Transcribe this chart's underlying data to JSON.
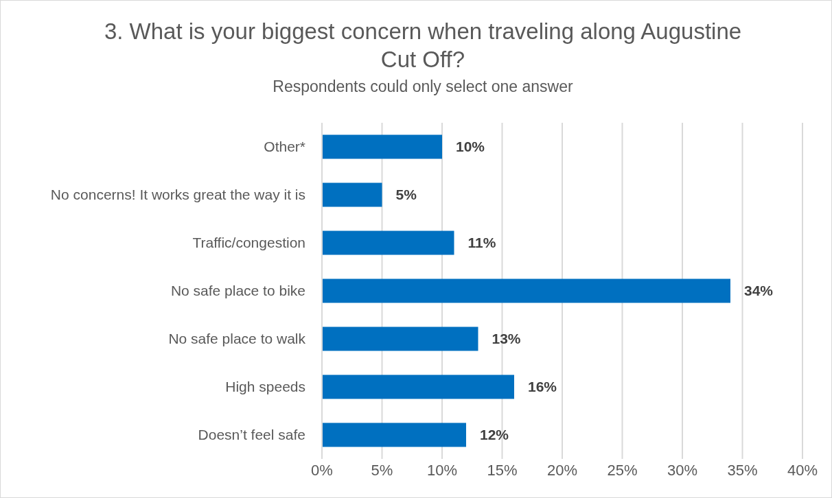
{
  "chart_data": {
    "type": "bar",
    "orientation": "horizontal",
    "title": "3. What is your biggest concern when traveling along Augustine Cut Off?",
    "subtitle": "Respondents could only select one answer",
    "categories": [
      "Other*",
      "No concerns! It works great the way it is",
      "Traffic/congestion",
      "No safe place to bike",
      "No safe place to walk",
      "High speeds",
      "Doesn’t feel safe"
    ],
    "values": [
      10,
      5,
      11,
      34,
      13,
      16,
      12
    ],
    "value_labels": [
      "10%",
      "5%",
      "11%",
      "34%",
      "13%",
      "16%",
      "12%"
    ],
    "color": "#0070c0",
    "xlim": [
      0,
      40
    ],
    "xticks": [
      {
        "value": 0,
        "label": "0%"
      },
      {
        "value": 5,
        "label": "5%"
      },
      {
        "value": 10,
        "label": "10%"
      },
      {
        "value": 15,
        "label": "15%"
      },
      {
        "value": 20,
        "label": "20%"
      },
      {
        "value": 25,
        "label": "25%"
      },
      {
        "value": 30,
        "label": "30%"
      },
      {
        "value": 35,
        "label": "35%"
      },
      {
        "value": 40,
        "label": "40%"
      }
    ],
    "grid": "x"
  }
}
